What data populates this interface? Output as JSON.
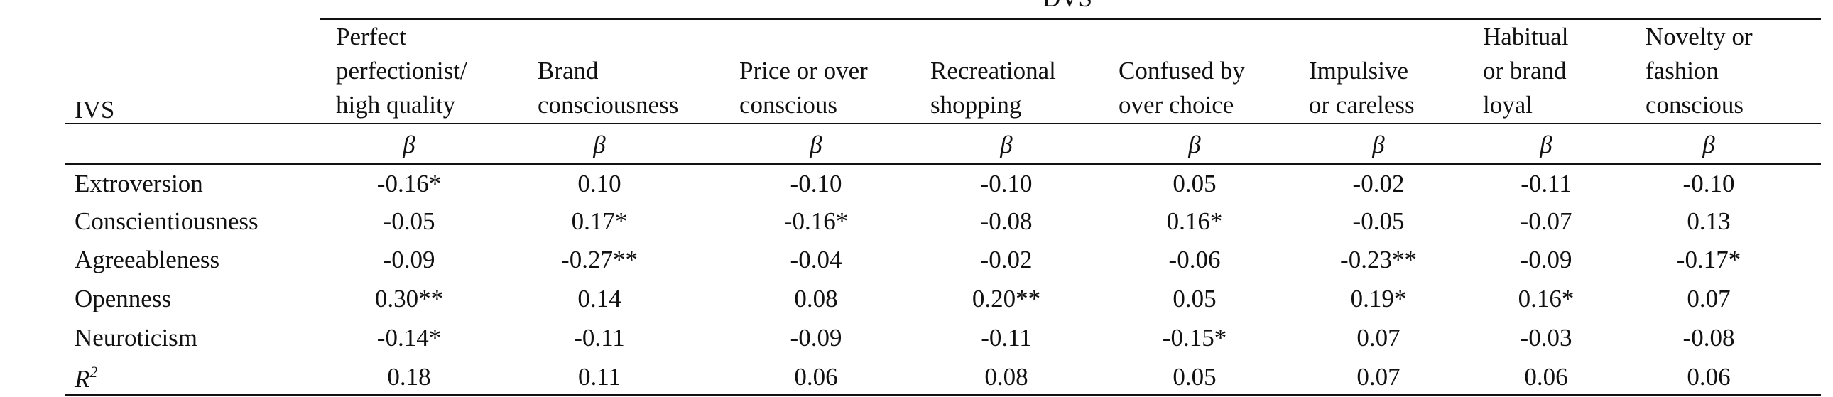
{
  "table": {
    "group_header": "DVS",
    "stub_header": "IVS",
    "columns": [
      [
        "Perfect",
        "perfectionist/",
        "high quality"
      ],
      [
        "Brand",
        "consciousness"
      ],
      [
        "Price or over",
        "conscious"
      ],
      [
        "Recreational",
        "shopping"
      ],
      [
        "Confused by",
        "over choice"
      ],
      [
        "Impulsive",
        "or careless"
      ],
      [
        "Habitual",
        "or brand",
        "loyal"
      ],
      [
        "Novelty or",
        "fashion",
        "conscious"
      ]
    ],
    "stat_row": [
      "β",
      "β",
      "β",
      "β",
      "β",
      "β",
      "β",
      "β"
    ],
    "rows": [
      {
        "label": "Extroversion",
        "values": [
          "-0.16*",
          "0.10",
          "-0.10",
          "-0.10",
          "0.05",
          "-0.02",
          "-0.11",
          "-0.10"
        ]
      },
      {
        "label": "Conscientiousness",
        "values": [
          "-0.05",
          "0.17*",
          "-0.16*",
          "-0.08",
          "0.16*",
          "-0.05",
          "-0.07",
          "0.13"
        ]
      },
      {
        "label": "Agreeableness",
        "values": [
          "-0.09",
          "-0.27**",
          "-0.04",
          "-0.02",
          "-0.06",
          "-0.23**",
          "-0.09",
          "-0.17*"
        ]
      },
      {
        "label": "Openness",
        "values": [
          "0.30**",
          "0.14",
          "0.08",
          "0.20**",
          "0.05",
          "0.19*",
          "0.16*",
          "0.07"
        ]
      },
      {
        "label": "Neuroticism",
        "values": [
          "-0.14*",
          "-0.11",
          "-0.09",
          "-0.11",
          "-0.15*",
          "0.07",
          "-0.03",
          "-0.08"
        ]
      },
      {
        "label": "R",
        "label_sup": "2",
        "values": [
          "0.18",
          "0.11",
          "0.06",
          "0.08",
          "0.05",
          "0.07",
          "0.06",
          "0.06"
        ]
      }
    ]
  }
}
